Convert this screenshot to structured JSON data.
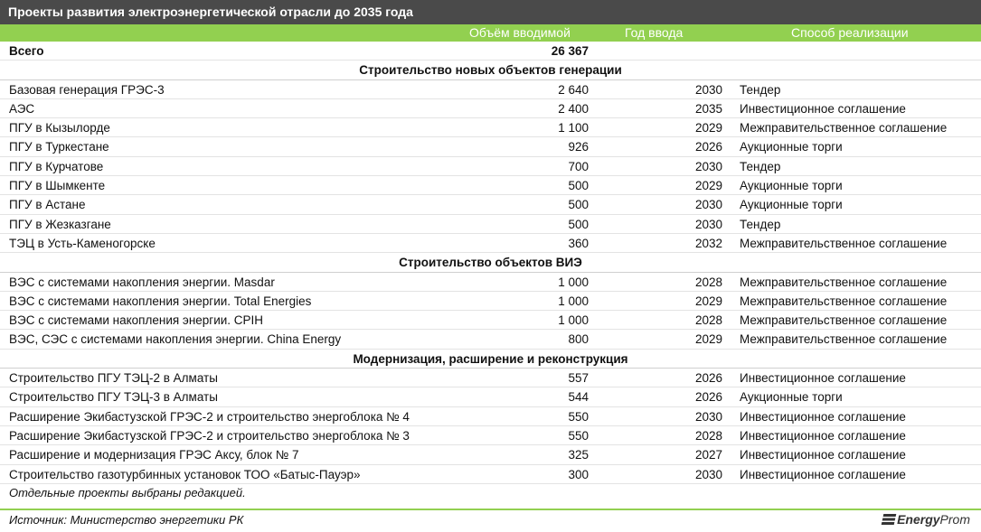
{
  "title": "Проекты развития электроэнергетической отрасли до 2035 года",
  "columns": {
    "volume": "Объём вводимой",
    "year": "Год ввода",
    "method": "Способ реализации"
  },
  "total": {
    "label": "Всего",
    "volume": "26 367"
  },
  "sections": [
    {
      "title": "Строительство новых объектов генерации",
      "rows": [
        {
          "name": "Базовая генерация ГРЭС-3",
          "volume": "2 640",
          "year": "2030",
          "method": "Тендер"
        },
        {
          "name": "АЭС",
          "volume": "2 400",
          "year": "2035",
          "method": "Инвестиционное соглашение"
        },
        {
          "name": "ПГУ в Кызылорде",
          "volume": "1 100",
          "year": "2029",
          "method": "Межправительственное соглашение"
        },
        {
          "name": "ПГУ в Туркестане",
          "volume": "926",
          "year": "2026",
          "method": "Аукционные торги"
        },
        {
          "name": "ПГУ в Курчатове",
          "volume": "700",
          "year": "2030",
          "method": "Тендер"
        },
        {
          "name": "ПГУ в Шымкенте",
          "volume": "500",
          "year": "2029",
          "method": "Аукционные торги"
        },
        {
          "name": "ПГУ в Астане",
          "volume": "500",
          "year": "2030",
          "method": "Аукционные торги"
        },
        {
          "name": "ПГУ в Жезказгане",
          "volume": "500",
          "year": "2030",
          "method": "Тендер"
        },
        {
          "name": "ТЭЦ в Усть-Каменогорске",
          "volume": "360",
          "year": "2032",
          "method": "Межправительственное соглашение"
        }
      ]
    },
    {
      "title": "Строительство объектов ВИЭ",
      "rows": [
        {
          "name": "ВЭС с системами накопления энергии. Masdar",
          "volume": "1 000",
          "year": "2028",
          "method": "Межправительственное соглашение"
        },
        {
          "name": "ВЭС с системами накопления энергии. Total Energies",
          "volume": "1 000",
          "year": "2029",
          "method": "Межправительственное соглашение"
        },
        {
          "name": "ВЭС с системами накопления энергии. СРІН",
          "volume": "1 000",
          "year": "2028",
          "method": "Межправительственное соглашение"
        },
        {
          "name": "ВЭС, СЭС с системами накопления энергии. China Energy",
          "volume": "800",
          "year": "2029",
          "method": "Межправительственное соглашение"
        }
      ]
    },
    {
      "title": "Модернизация, расширение и реконструкция",
      "rows": [
        {
          "name": "Строительство ПГУ ТЭЦ-2 в Алматы",
          "volume": "557",
          "year": "2026",
          "method": "Инвестиционное соглашение"
        },
        {
          "name": "Строительство ПГУ ТЭЦ-3 в Алматы",
          "volume": "544",
          "year": "2026",
          "method": "Аукционные торги"
        },
        {
          "name": "Расширение Экибастузской ГРЭС-2 и строительство энергоблока № 4",
          "volume": "550",
          "year": "2030",
          "method": "Инвестиционное соглашение"
        },
        {
          "name": "Расширение Экибастузской ГРЭС-2 и строительство энергоблока № 3",
          "volume": "550",
          "year": "2028",
          "method": "Инвестиционное соглашение"
        },
        {
          "name": "Расширение и модернизация ГРЭС Аксу, блок № 7",
          "volume": "325",
          "year": "2027",
          "method": "Инвестиционное соглашение"
        },
        {
          "name": "Строительство газотурбинных установок ТОО «Батыс-Пауэр»",
          "volume": "300",
          "year": "2030",
          "method": "Инвестиционное соглашение"
        }
      ]
    }
  ],
  "note": "Отдельные проекты выбраны редакцией.",
  "source": "Источник: Министерство энергетики РК",
  "logo": {
    "primary": "Energy",
    "secondary": "Prom",
    "icon": "energyprom-logo-icon"
  },
  "colors": {
    "title_bg": "#4a4a4a",
    "header_bg": "#92d050",
    "footer_line": "#92d050"
  }
}
